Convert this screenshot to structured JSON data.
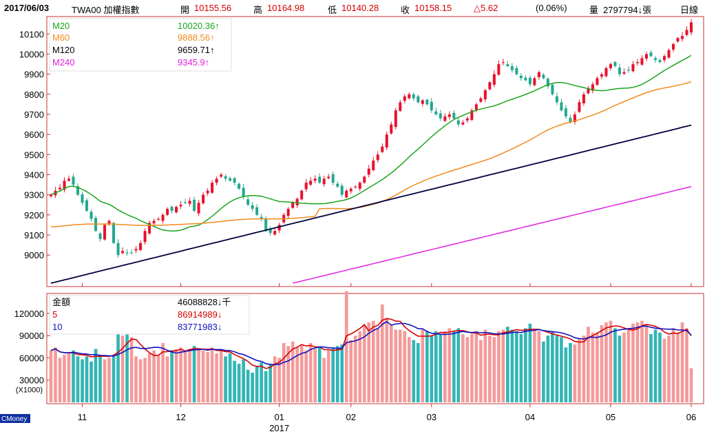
{
  "header": {
    "date": "2017/06/03",
    "symbol": "TWA00 加權指數",
    "open_label": "開",
    "open": "10155.56",
    "high_label": "高",
    "high": "10164.98",
    "low_label": "低",
    "low": "10140.28",
    "close_label": "收",
    "close": "10158.15",
    "change": "△5.62",
    "change_pct": "(0.06%)",
    "volume_label": "量",
    "volume": "2797794↓張",
    "period": "日線"
  },
  "colors": {
    "up": "#e8112d",
    "down": "#22a88f",
    "ma20": "#1aa51a",
    "ma60": "#f08a1c",
    "ma120": "#000040",
    "ma240": "#e020e0",
    "frame": "#c83030",
    "vol_up": "#f49a9a",
    "vol_down": "#33b5b5",
    "vol_ma5": "#d40000",
    "vol_ma10": "#1010c0"
  },
  "price_legend": [
    {
      "name": "M20",
      "value": "10020.36↑",
      "color": "#1aa51a"
    },
    {
      "name": "M60",
      "value": "9888.56↑",
      "color": "#f08a1c"
    },
    {
      "name": "M120",
      "value": "9659.71↑",
      "color": "#000000"
    },
    {
      "name": "M240",
      "value": "9345.9↑",
      "color": "#e020e0"
    }
  ],
  "volume_legend": [
    {
      "name": "金額",
      "value": "46088828↓千",
      "color": "#000000"
    },
    {
      "name": "5",
      "value": "86914989↓",
      "color": "#d40000"
    },
    {
      "name": "10",
      "value": "83771983↓",
      "color": "#1010c0"
    }
  ],
  "brand": "CMoney",
  "chart_data": {
    "type": "candlestick",
    "price_axis": {
      "ticks": [
        9000,
        9100,
        9200,
        9300,
        9400,
        9500,
        9600,
        9700,
        9800,
        9900,
        10000,
        10100
      ],
      "range": [
        8850,
        10180
      ]
    },
    "volume_axis": {
      "ticks": [
        "120000",
        "90000",
        "60000",
        "30000"
      ],
      "unit": "(X1000)",
      "range": [
        0,
        145000
      ]
    },
    "month_labels": [
      {
        "label": "11",
        "day": 7
      },
      {
        "label": "12",
        "day": 29
      },
      {
        "label": "01",
        "day": 51,
        "year": "2017"
      },
      {
        "label": "02",
        "day": 67
      },
      {
        "label": "03",
        "day": 85
      },
      {
        "label": "04",
        "day": 107
      },
      {
        "label": "05",
        "day": 125
      },
      {
        "label": "06",
        "day": 143
      }
    ],
    "closes": [
      9300,
      9320,
      9335,
      9370,
      9380,
      9350,
      9300,
      9260,
      9220,
      9180,
      9120,
      9080,
      9150,
      9170,
      9060,
      9000,
      9020,
      9010,
      9010,
      9030,
      9060,
      9120,
      9160,
      9170,
      9180,
      9200,
      9230,
      9220,
      9240,
      9250,
      9260,
      9270,
      9220,
      9260,
      9300,
      9320,
      9360,
      9380,
      9400,
      9380,
      9370,
      9360,
      9330,
      9290,
      9250,
      9230,
      9200,
      9180,
      9120,
      9110,
      9120,
      9150,
      9200,
      9230,
      9260,
      9280,
      9320,
      9360,
      9370,
      9380,
      9360,
      9380,
      9390,
      9360,
      9340,
      9300,
      9320,
      9330,
      9340,
      9360,
      9390,
      9430,
      9470,
      9500,
      9540,
      9600,
      9650,
      9720,
      9760,
      9790,
      9800,
      9780,
      9760,
      9770,
      9750,
      9720,
      9700,
      9680,
      9690,
      9700,
      9680,
      9650,
      9660,
      9680,
      9720,
      9750,
      9780,
      9820,
      9860,
      9900,
      9950,
      9960,
      9940,
      9920,
      9900,
      9880,
      9870,
      9850,
      9880,
      9910,
      9880,
      9840,
      9800,
      9760,
      9720,
      9690,
      9660,
      9700,
      9760,
      9800,
      9830,
      9850,
      9880,
      9900,
      9930,
      9950,
      9940,
      9900,
      9910,
      9920,
      9950,
      9960,
      9980,
      10000,
      9990,
      9970,
      9960,
      9990,
      10020,
      10050,
      10080,
      10090,
      10120,
      10158
    ],
    "volumes": [
      70,
      74,
      60,
      64,
      66,
      70,
      62,
      58,
      62,
      55,
      72,
      64,
      58,
      60,
      64,
      92,
      90,
      92,
      88,
      62,
      58,
      60,
      66,
      70,
      64,
      80,
      62,
      70,
      72,
      74,
      68,
      72,
      76,
      72,
      70,
      68,
      74,
      66,
      72,
      62,
      66,
      56,
      52,
      58,
      44,
      40,
      48,
      54,
      42,
      52,
      62,
      60,
      80,
      76,
      82,
      74,
      78,
      70,
      80,
      72,
      74,
      60,
      70,
      74,
      76,
      78,
      150,
      84,
      90,
      96,
      104,
      108,
      110,
      100,
      132,
      114,
      104,
      98,
      98,
      96,
      88,
      84,
      80,
      98,
      96,
      90,
      96,
      92,
      96,
      100,
      96,
      100,
      92,
      88,
      92,
      96,
      84,
      98,
      90,
      88,
      96,
      98,
      102,
      98,
      96,
      92,
      100,
      106,
      98,
      96,
      82,
      90,
      96,
      90,
      88,
      74,
      80,
      78,
      86,
      90,
      102,
      94,
      94,
      104,
      108,
      110,
      100,
      90,
      94,
      98,
      106,
      108,
      110,
      104,
      92,
      98,
      94,
      86,
      90,
      100,
      94,
      108,
      100,
      46
    ]
  }
}
